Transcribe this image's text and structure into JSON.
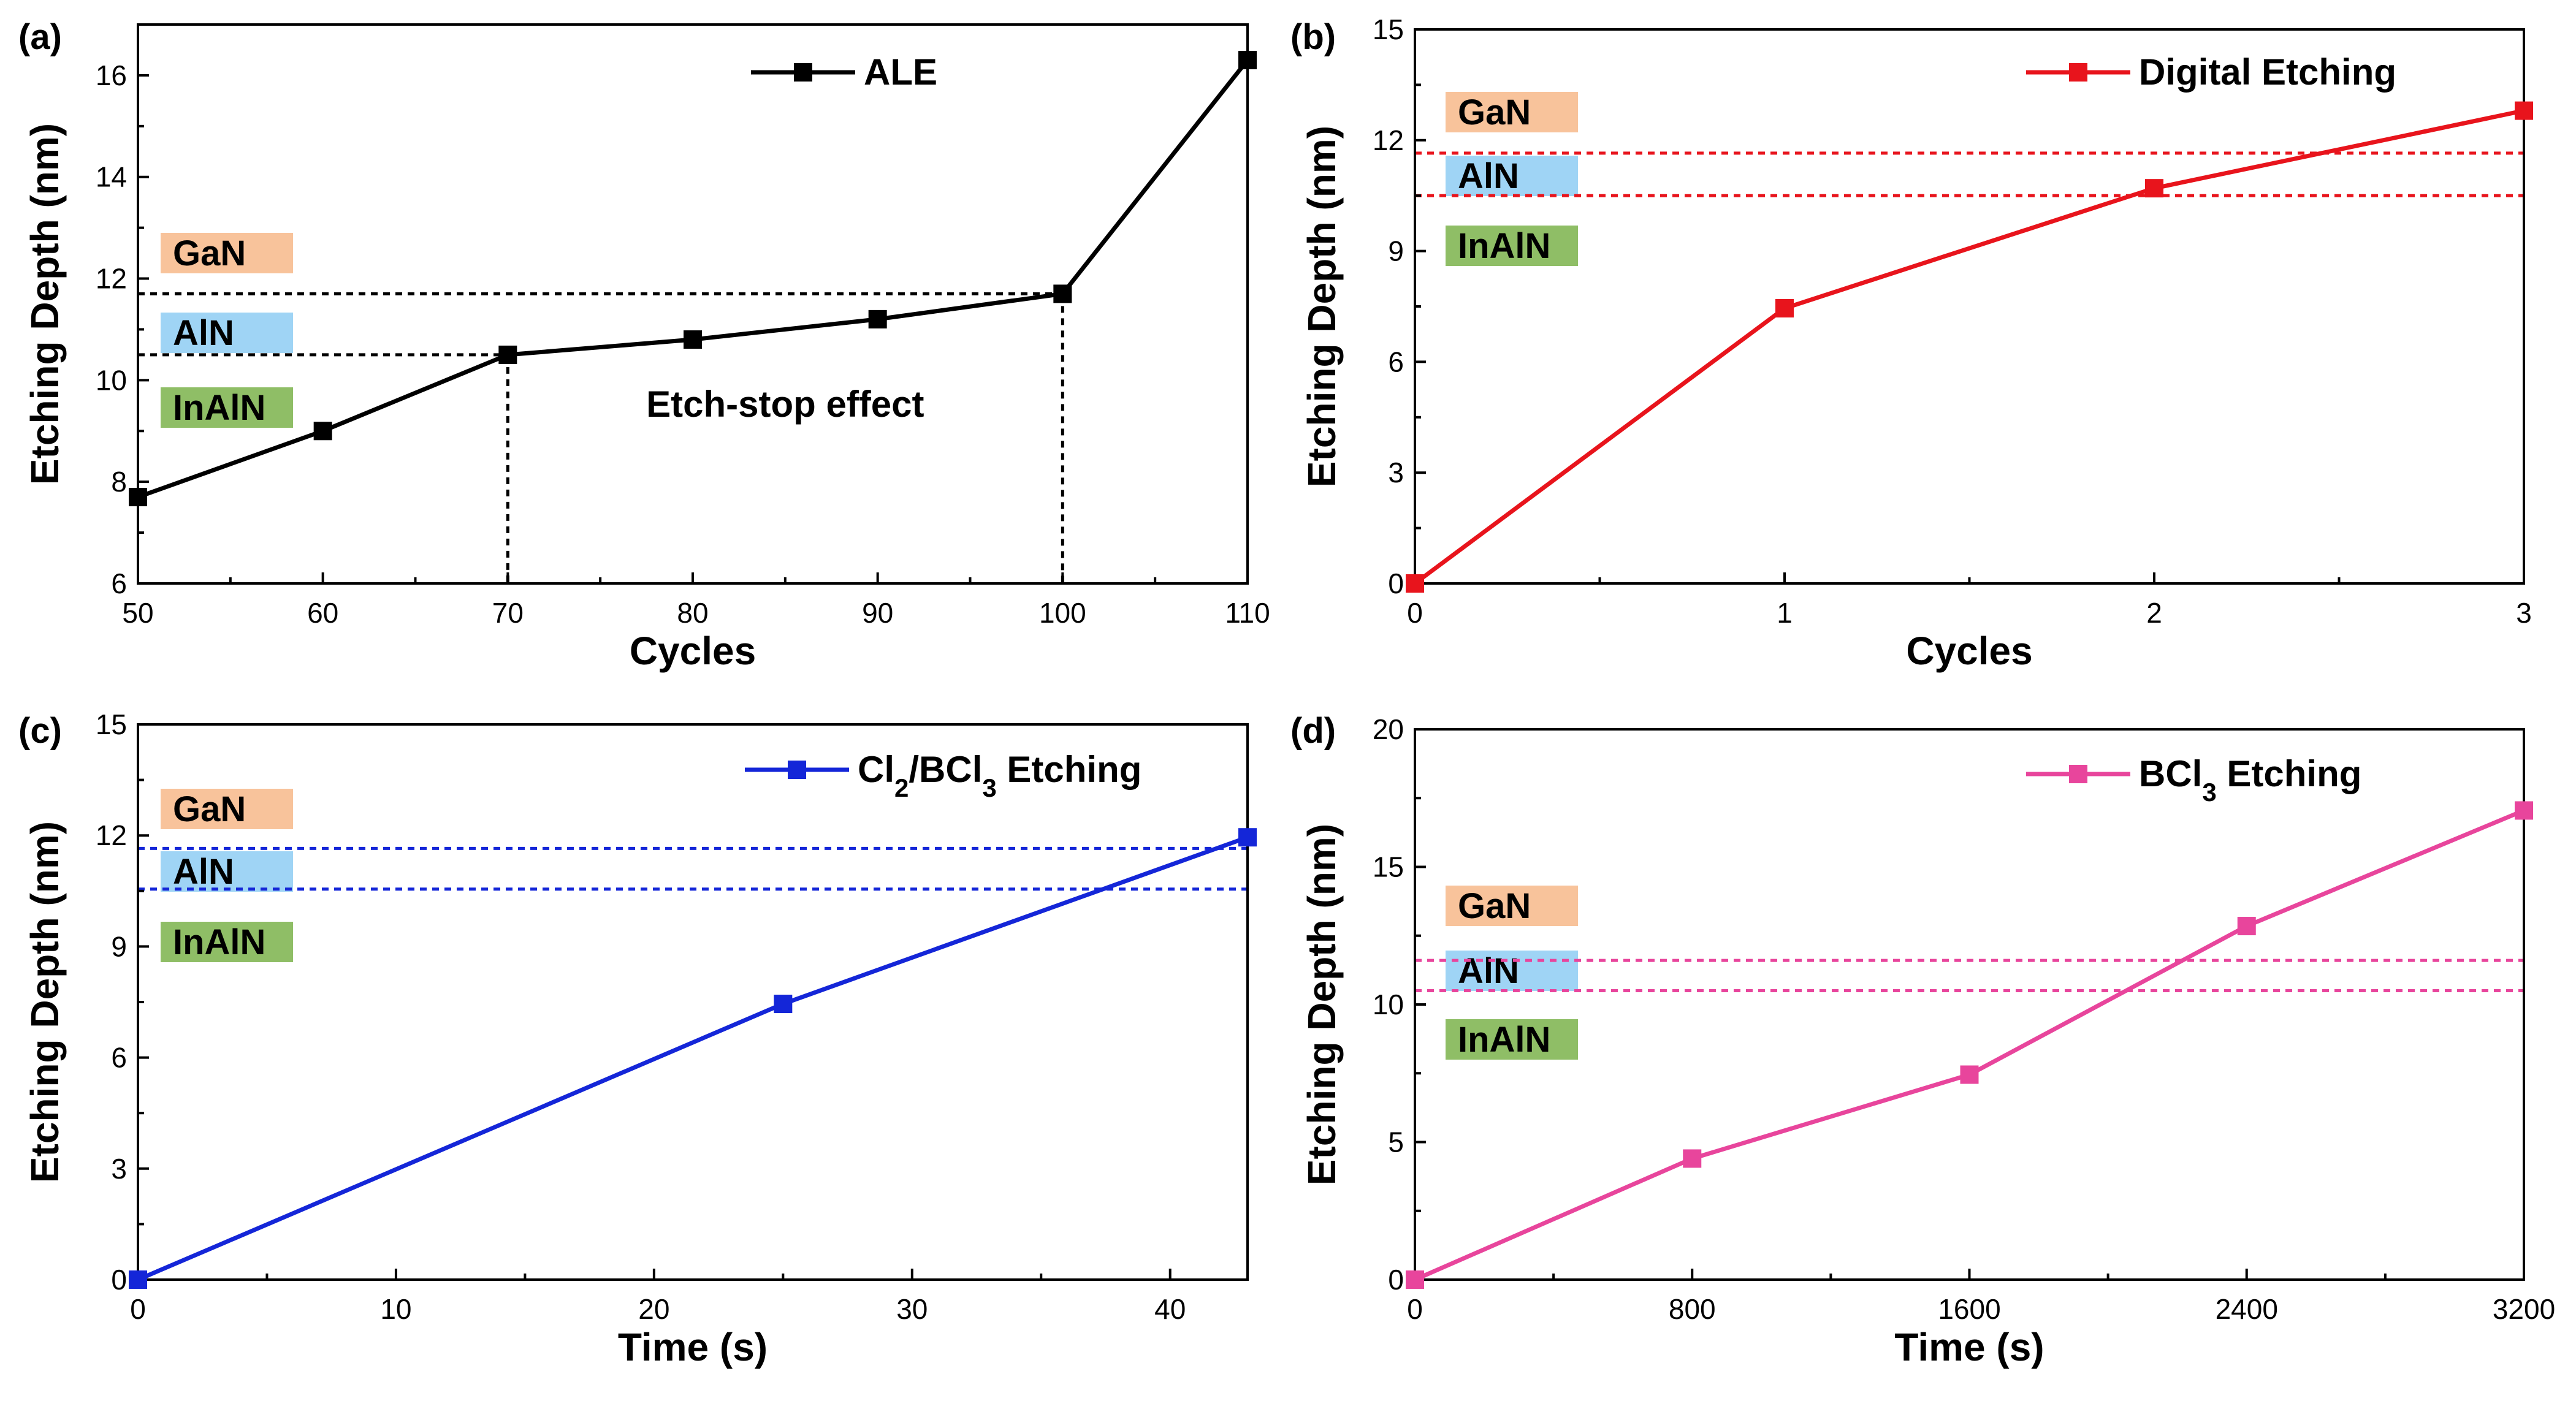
{
  "chart_data": [
    {
      "panel_label": "(a)",
      "type": "line",
      "xlabel": "Cycles",
      "ylabel": "Etching Depth (nm)",
      "xlim": [
        50,
        110
      ],
      "ylim": [
        6,
        17
      ],
      "xticks": [
        50,
        60,
        70,
        80,
        90,
        100,
        110
      ],
      "xtick_labels": [
        "50",
        "60",
        "70",
        "80",
        "90",
        "100",
        "110"
      ],
      "yticks": [
        6,
        8,
        10,
        12,
        14,
        16
      ],
      "ytick_labels": [
        "6",
        "8",
        "10",
        "12",
        "14",
        "16"
      ],
      "color": "#000000",
      "series": [
        {
          "name": "ALE",
          "x": [
            50,
            60,
            70,
            80,
            90,
            100,
            110
          ],
          "y": [
            7.7,
            9.0,
            10.5,
            10.8,
            11.2,
            11.7,
            16.3
          ]
        }
      ],
      "hlines": [
        {
          "y": 11.7,
          "x_end": 100
        },
        {
          "y": 10.5,
          "x_end": 70
        }
      ],
      "vlines": [
        {
          "x": 70,
          "y_end": 10.5
        },
        {
          "x": 100,
          "y_end": 11.7
        }
      ],
      "layers": [
        "GaN",
        "AlN",
        "InAlN"
      ],
      "annotation": "Etch-stop effect",
      "legend_position": "top-center"
    },
    {
      "panel_label": "(b)",
      "type": "line",
      "xlabel": "Cycles",
      "ylabel": "Etching Depth (nm)",
      "xlim": [
        0,
        3
      ],
      "ylim": [
        0,
        15
      ],
      "xticks": [
        0,
        1,
        2,
        3
      ],
      "xtick_labels": [
        "0",
        "1",
        "2",
        "3"
      ],
      "yticks": [
        0,
        3,
        6,
        9,
        12,
        15
      ],
      "ytick_labels": [
        "0",
        "3",
        "6",
        "9",
        "12",
        "15"
      ],
      "color": "#e8141c",
      "series": [
        {
          "name": "Digital Etching",
          "x": [
            0,
            1,
            2,
            3
          ],
          "y": [
            0,
            7.45,
            10.7,
            12.8
          ]
        }
      ],
      "hlines": [
        {
          "y": 11.65
        },
        {
          "y": 10.5
        }
      ],
      "vlines": [],
      "layers": [
        "GaN",
        "AlN",
        "InAlN"
      ],
      "annotation": "",
      "legend_position": "top-right"
    },
    {
      "panel_label": "(c)",
      "type": "line",
      "xlabel": "Time (s)",
      "ylabel": "Etching Depth (nm)",
      "xlim": [
        0,
        43
      ],
      "ylim": [
        0,
        15
      ],
      "xticks": [
        0,
        10,
        20,
        30,
        40
      ],
      "xtick_labels": [
        "0",
        "10",
        "20",
        "30",
        "40"
      ],
      "yticks": [
        0,
        3,
        6,
        9,
        12,
        15
      ],
      "ytick_labels": [
        "0",
        "3",
        "6",
        "9",
        "12",
        "15"
      ],
      "color": "#1426d8",
      "series": [
        {
          "name": "Cl2/BCl3 Etching",
          "x": [
            0,
            25,
            43
          ],
          "y": [
            0,
            7.45,
            11.95
          ]
        }
      ],
      "hlines": [
        {
          "y": 11.65
        },
        {
          "y": 10.55
        }
      ],
      "vlines": [],
      "layers": [
        "GaN",
        "AlN",
        "InAlN"
      ],
      "annotation": "",
      "legend_position": "top-right"
    },
    {
      "panel_label": "(d)",
      "type": "line",
      "xlabel": "Time (s)",
      "ylabel": "Etching Depth (nm)",
      "xlim": [
        0,
        3200
      ],
      "ylim": [
        0,
        20
      ],
      "xticks": [
        0,
        800,
        1600,
        2400,
        3200
      ],
      "xtick_labels": [
        "0",
        "800",
        "1600",
        "2400",
        "3200"
      ],
      "yticks": [
        0,
        5,
        10,
        15,
        20
      ],
      "ytick_labels": [
        "0",
        "5",
        "10",
        "15",
        "20"
      ],
      "color": "#e8459c",
      "series": [
        {
          "name": "BCl3 Etching",
          "x": [
            0,
            800,
            1600,
            2400,
            3200
          ],
          "y": [
            0,
            4.4,
            7.45,
            12.85,
            17.05
          ]
        }
      ],
      "hlines": [
        {
          "y": 11.6
        },
        {
          "y": 10.5
        }
      ],
      "vlines": [],
      "layers": [
        "GaN",
        "AlN",
        "InAlN"
      ],
      "annotation": "",
      "legend_position": "top-right"
    }
  ],
  "layer_colors": {
    "GaN": "#f8c39b",
    "AlN": "#9fd4f5",
    "InAlN": "#8fbe66"
  }
}
